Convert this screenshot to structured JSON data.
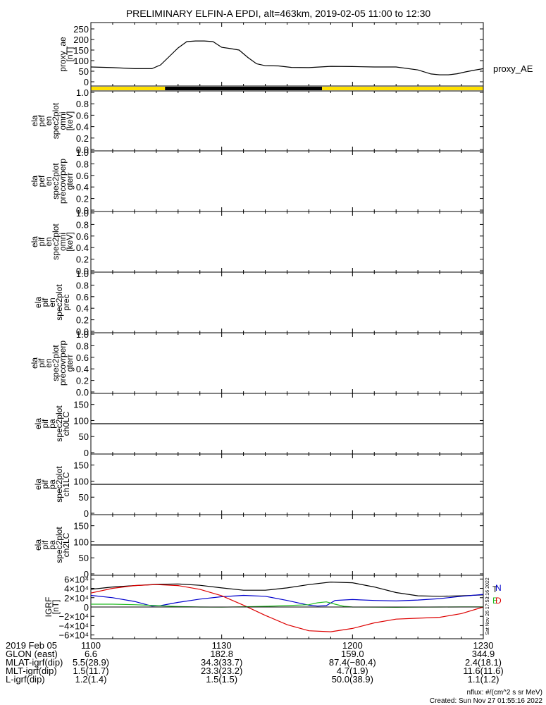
{
  "title": "PRELIMINARY ELFIN-A EPDI, alt=463km, 2019-02-05 11:00 to 12:30",
  "chart_data": [
    {
      "type": "line",
      "ylabel": [
        "proxy_ae",
        "[nT]"
      ],
      "ylim": [
        0,
        260
      ],
      "yticks": [
        0,
        50,
        100,
        150,
        200,
        250
      ],
      "series": [
        {
          "name": "proxy_AE",
          "color": "#000000",
          "x": [
            0,
            5,
            10,
            14,
            16,
            18,
            20,
            22,
            24,
            26,
            28,
            30,
            32,
            34,
            36,
            38,
            40,
            43,
            46,
            50,
            55,
            60,
            65,
            70,
            75,
            78,
            80,
            82,
            84,
            86,
            88,
            90
          ],
          "y": [
            70,
            67,
            62,
            62,
            80,
            120,
            160,
            190,
            193,
            193,
            190,
            163,
            157,
            150,
            115,
            85,
            76,
            75,
            68,
            67,
            73,
            72,
            70,
            70,
            56,
            37,
            33,
            33,
            38,
            47,
            55,
            62
          ]
        }
      ]
    },
    {
      "type": "bar",
      "name": "orbit-segment-bar",
      "segments": [
        {
          "from": 0,
          "to": 17,
          "color": "#ffe000"
        },
        {
          "from": 17,
          "to": 53,
          "color": "#000000"
        },
        {
          "from": 53,
          "to": 90,
          "color": "#ffe000"
        }
      ]
    },
    {
      "type": "line",
      "ylabel": [
        "ela",
        "pef",
        "en",
        "spec2plot",
        "omni",
        "[keV]"
      ],
      "ylim": [
        0,
        1
      ],
      "yticks": [
        "0.0",
        "0.2",
        "0.4",
        "0.6",
        "0.8",
        "1.0"
      ],
      "series": []
    },
    {
      "type": "line",
      "ylabel": [
        "ela",
        "pef",
        "en",
        "spec2plot",
        "precovrperp",
        "gterr"
      ],
      "ylim": [
        0,
        1
      ],
      "yticks": [
        "0.0",
        "0.2",
        "0.4",
        "0.6",
        "0.8",
        "1.0"
      ],
      "series": []
    },
    {
      "type": "line",
      "ylabel": [
        "ela",
        "pif",
        "en",
        "spec2plot",
        "omni",
        "[keV]"
      ],
      "ylim": [
        0,
        1
      ],
      "yticks": [
        "0.0",
        "0.2",
        "0.4",
        "0.6",
        "0.8",
        "1.0"
      ],
      "series": []
    },
    {
      "type": "line",
      "ylabel": [
        "ela",
        "pif",
        "en",
        "spec2plot",
        "prec"
      ],
      "ylim": [
        0,
        1
      ],
      "yticks": [
        "0.0",
        "0.2",
        "0.4",
        "0.6",
        "0.8",
        "1.0"
      ],
      "series": []
    },
    {
      "type": "line",
      "ylabel": [
        "ela",
        "pif",
        "en",
        "spec2plot",
        "precovrperp",
        "gterr"
      ],
      "ylim": [
        0,
        1
      ],
      "yticks": [
        "0.0",
        "0.2",
        "0.4",
        "0.6",
        "0.8",
        "1.0"
      ],
      "series": []
    },
    {
      "type": "line",
      "ylabel": [
        "ela",
        "pif",
        "pa",
        "spec2plot",
        "ch0LC"
      ],
      "ylim": [
        0,
        180
      ],
      "yticks": [
        "0",
        "50",
        "100",
        "150"
      ],
      "series": [
        {
          "color": "#000000",
          "x": [
            0,
            90
          ],
          "y": [
            90,
            90
          ]
        }
      ]
    },
    {
      "type": "line",
      "ylabel": [
        "ela",
        "pif",
        "pa",
        "spec2plot",
        "ch1LC"
      ],
      "ylim": [
        0,
        180
      ],
      "yticks": [
        "0",
        "50",
        "100",
        "150"
      ],
      "series": [
        {
          "color": "#000000",
          "x": [
            0,
            90
          ],
          "y": [
            90,
            90
          ]
        }
      ]
    },
    {
      "type": "line",
      "ylabel": [
        "ela",
        "pif",
        "pa",
        "spec2plot",
        "ch2LC"
      ],
      "ylim": [
        0,
        180
      ],
      "yticks": [
        "0",
        "50",
        "100",
        "150"
      ],
      "series": [
        {
          "color": "#000000",
          "x": [
            0,
            90
          ],
          "y": [
            90,
            90
          ]
        }
      ]
    },
    {
      "type": "line",
      "ylabel": [
        "IGRF",
        "[nT]"
      ],
      "ylim": [
        -65000,
        65000
      ],
      "yticks": [
        {
          "v": 60000,
          "label": "6×10⁴"
        },
        {
          "v": 40000,
          "label": "4×10⁴"
        },
        {
          "v": 20000,
          "label": "2×10⁴"
        },
        {
          "v": 0,
          "label": "0"
        },
        {
          "v": -20000,
          "label": "−2×10⁴"
        },
        {
          "v": -40000,
          "label": "−4×10⁴"
        },
        {
          "v": -60000,
          "label": "−6×10⁴"
        }
      ],
      "series": [
        {
          "color": "#000000",
          "x": [
            0,
            5,
            10,
            15,
            20,
            25,
            30,
            35,
            40,
            45,
            50,
            55,
            60,
            65,
            70,
            75,
            80,
            85,
            90
          ],
          "y": [
            38000,
            43000,
            46000,
            48500,
            49500,
            46500,
            41000,
            36000,
            36000,
            41000,
            48000,
            53500,
            52000,
            43000,
            31000,
            24000,
            23000,
            24000,
            26000
          ]
        },
        {
          "color": "#0000cc",
          "x": [
            0,
            5,
            10,
            14,
            16,
            20,
            25,
            30,
            35,
            40,
            45,
            50,
            52,
            54,
            56,
            60,
            65,
            70,
            75,
            80,
            85,
            90
          ],
          "y": [
            25000,
            20000,
            12000,
            2000,
            3000,
            10000,
            17000,
            22000,
            25000,
            23000,
            14000,
            4000,
            2000,
            3000,
            14000,
            16000,
            14000,
            13000,
            15000,
            18000,
            23000,
            27000
          ]
        },
        {
          "color": "#dd0000",
          "x": [
            0,
            5,
            10,
            15,
            20,
            25,
            30,
            35,
            40,
            45,
            50,
            55,
            60,
            65,
            70,
            75,
            80,
            85,
            90
          ],
          "y": [
            30000,
            40000,
            46000,
            48000,
            46000,
            38000,
            24000,
            4000,
            -18000,
            -38000,
            -51000,
            -53000,
            -46000,
            -34000,
            -26000,
            -24000,
            -22000,
            -14000,
            0
          ]
        },
        {
          "color": "#22bb22",
          "x": [
            0,
            5,
            10,
            15,
            20,
            25,
            30,
            35,
            40,
            45,
            50,
            52,
            54,
            56,
            58,
            60,
            65,
            70,
            75,
            80,
            85,
            90
          ],
          "y": [
            6000,
            6000,
            5000,
            3000,
            1000,
            0,
            -300,
            500,
            1500,
            3000,
            5000,
            9000,
            11000,
            6000,
            1500,
            0,
            -300,
            -600,
            -300,
            0,
            100,
            200
          ]
        }
      ],
      "legend": [
        {
          "label": "T",
          "color": "#000000"
        },
        {
          "label": "N",
          "color": "#0000cc"
        },
        {
          "label": "E",
          "color": "#22bb22"
        },
        {
          "label": "D",
          "color": "#dd0000"
        }
      ]
    }
  ],
  "side_stamp": "Sat Nov 26 17:53:16 2022",
  "bottom": {
    "rows": [
      {
        "label": "2019 Feb 05",
        "values": [
          "1100",
          "1130",
          "1200",
          "1230"
        ]
      },
      {
        "label": "GLON (east)",
        "values": [
          "6.6",
          "182.8",
          "159.0",
          "344.9"
        ]
      },
      {
        "label": "MLAT-igrf(dip)",
        "values": [
          "5.5(28.9)",
          "34.3(33.7)",
          "87.4(−80.4)",
          "2.4(18.1)"
        ]
      },
      {
        "label": "MLT-igrf(dip)",
        "values": [
          "1.5(11.7)",
          "23.3(23.2)",
          "4.7(1.9)",
          "11.6(11.6)"
        ]
      },
      {
        "label": "L-igrf(dip)",
        "values": [
          "1.2(1.4)",
          "1.5(1.5)",
          "50.0(38.9)",
          "1.1(1.2)"
        ]
      }
    ],
    "nflux": "nflux: #/(cm^2 s sr MeV)",
    "created": "Created: Sun Nov 27 01:55:16 2022"
  }
}
